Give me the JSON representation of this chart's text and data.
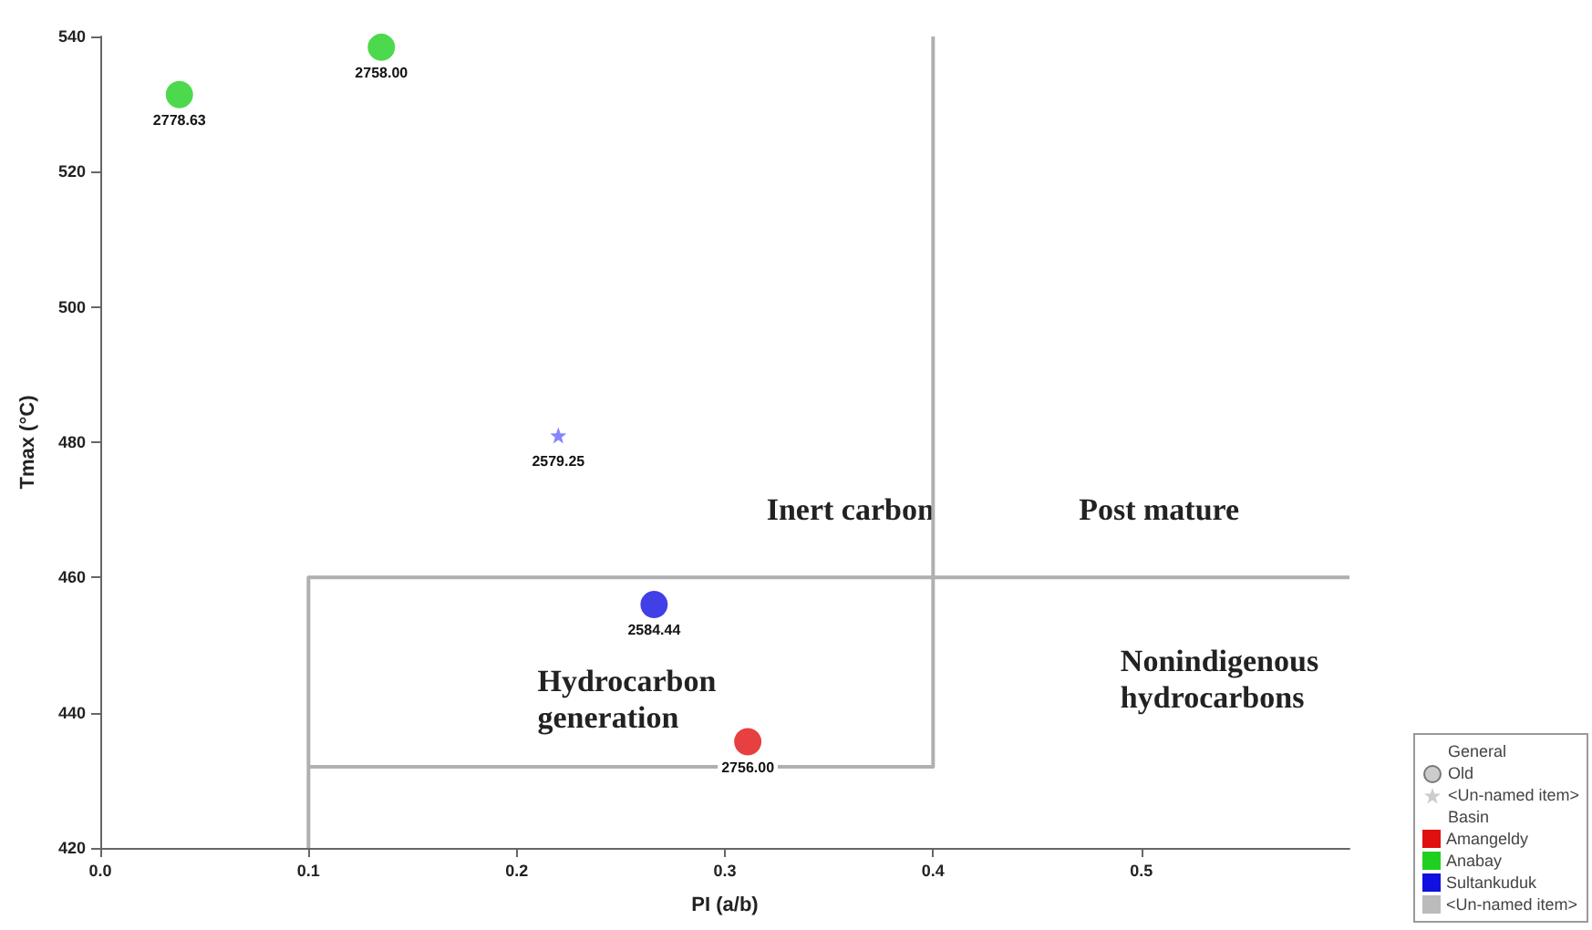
{
  "chart_data": {
    "type": "scatter",
    "xlabel": "PI (a/b)",
    "ylabel": "Tmax (°C)",
    "xlim": [
      0,
      0.6
    ],
    "xticks": [
      {
        "value": 0,
        "label": "0.0"
      },
      0.1,
      0.2,
      0.3,
      0.4,
      0.5
    ],
    "ylim": [
      420,
      540
    ],
    "yticks": [
      420,
      440,
      460,
      480,
      500,
      520,
      540
    ],
    "grid": false,
    "legend": "bottom right",
    "marker": "circle",
    "series": [
      {
        "name": "Amangeldy",
        "color": "#e01010",
        "x": [
          0.311
        ],
        "values": [
          435.7
        ]
      },
      {
        "name": "Anabay",
        "color": "#20d020",
        "x": [
          0.038,
          0.135
        ],
        "values": [
          531.4,
          538.4
        ]
      },
      {
        "name": "Sultankuduk",
        "color": "#1010e0",
        "x": [
          0.266
        ],
        "values": [
          456
        ]
      },
      {
        "color": "#6666ff",
        "marker": "star",
        "x": [
          0.22
        ],
        "values": [
          481
        ]
      },
      {
        "type": "line",
        "color": "#b0b0b0",
        "marker": "none",
        "x": [
          0.1,
          0.1,
          0.6
        ],
        "values": [
          420,
          460,
          460
        ]
      },
      {
        "type": "line",
        "color": "#b0b0b0",
        "marker": "none",
        "x": [
          0.1,
          0.4,
          0.4
        ],
        "values": [
          432,
          432,
          540
        ]
      }
    ],
    "annotations": [
      "Inert carbon",
      "Post mature",
      "Hydrocarbon\ngeneration",
      "Nonindigenous\nhydrocarbons",
      "General",
      "Old",
      "<Un-named item>",
      "Basin",
      "<Un-named item>",
      {
        "text": "2756.00",
        "x": 0.311,
        "y": 435.7
      },
      {
        "text": "2778.63",
        "x": 0.038,
        "y": 531.4
      },
      {
        "text": "2758.00",
        "x": 0.135,
        "y": 538.4
      },
      {
        "text": "2584.44",
        "x": 0.266,
        "y": 456
      },
      {
        "text": "2579.25",
        "x": 0.22,
        "y": 481
      }
    ]
  }
}
